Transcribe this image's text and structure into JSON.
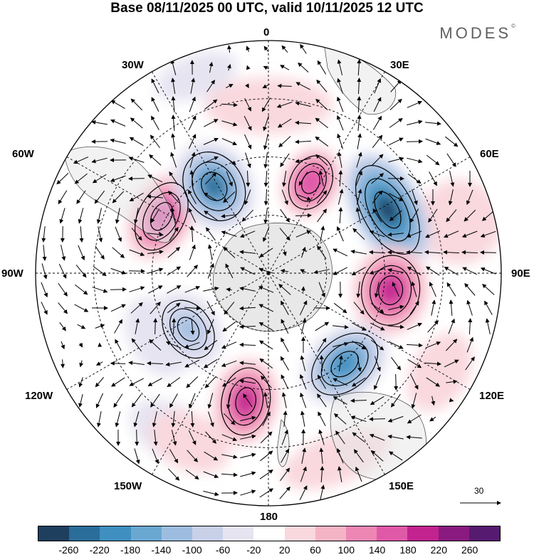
{
  "title": "Base 08/11/2025 00 UTC, valid 10/11/2025 12 UTC",
  "logo": "MODES",
  "logo_mark": "©",
  "longitude_labels": {
    "lon_0": "0",
    "lon_30e": "30E",
    "lon_60e": "60E",
    "lon_90e": "90E",
    "lon_120e": "120E",
    "lon_150e": "150E",
    "lon_180": "180",
    "lon_150w": "150W",
    "lon_120w": "120W",
    "lon_90w": "90W",
    "lon_60w": "60W",
    "lon_30w": "30W"
  },
  "vector_reference": "30",
  "colorbar": {
    "ticks": [
      "-260",
      "-220",
      "-180",
      "-140",
      "-100",
      "-60",
      "-20",
      "20",
      "60",
      "100",
      "140",
      "180",
      "220",
      "260"
    ],
    "colors": [
      "#1f3f5f",
      "#2a6d9a",
      "#3f8fc0",
      "#6aa8d2",
      "#9dbde0",
      "#c9d1e9",
      "#e6e4f1",
      "#ffffff",
      "#f9d8de",
      "#f4b4c6",
      "#ee86b4",
      "#e059a8",
      "#c2238e",
      "#8a1a80",
      "#571a71"
    ]
  },
  "anomaly_centers": [
    {
      "sign": "positive",
      "region": "60W-90W",
      "value": 220
    },
    {
      "sign": "negative",
      "region": "30W-60W",
      "value": -220
    },
    {
      "sign": "positive",
      "region": "30E",
      "value": 180
    },
    {
      "sign": "negative",
      "region": "60E",
      "value": -260
    },
    {
      "sign": "positive",
      "region": "90E",
      "value": 220
    },
    {
      "sign": "negative",
      "region": "120E-150E",
      "value": -180
    },
    {
      "sign": "positive",
      "region": "180-150W",
      "value": 220
    },
    {
      "sign": "negative",
      "region": "120W",
      "value": -100
    }
  ]
}
